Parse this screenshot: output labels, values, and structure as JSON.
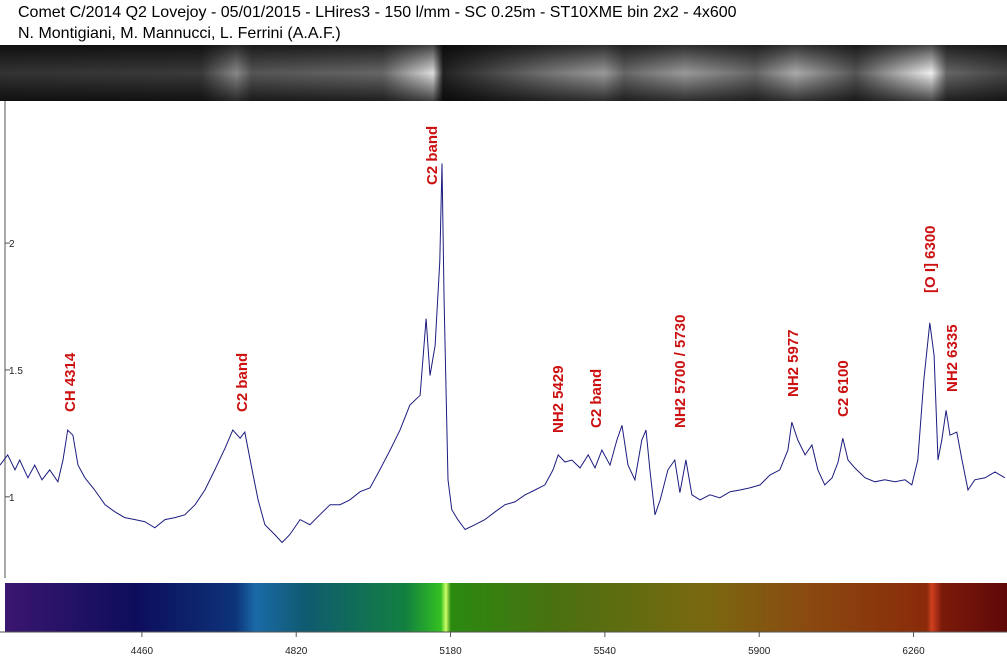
{
  "chart_data": {
    "type": "line",
    "title": "Comet C/2014 Q2 Lovejoy - 05/01/2015 - LHires3 - 150 l/mm - SC 0.25m - ST10XME bin 2x2 - 4x600",
    "subtitle": "N. Montigiani, M. Mannucci, L. Ferrini (A.A.F.)",
    "x": [
      4129,
      4147,
      4164,
      4175,
      4194,
      4210,
      4227,
      4245,
      4264,
      4276,
      4287,
      4299,
      4311,
      4327,
      4350,
      4374,
      4397,
      4420,
      4444,
      4467,
      4490,
      4514,
      4537,
      4560,
      4584,
      4607,
      4630,
      4654,
      4672,
      4689,
      4700,
      4717,
      4731,
      4747,
      4770,
      4787,
      4805,
      4829,
      4852,
      4875,
      4899,
      4922,
      4945,
      4969,
      4992,
      5015,
      5039,
      5062,
      5085,
      5109,
      5123,
      5132,
      5144,
      5155,
      5160,
      5165,
      5174,
      5183,
      5197,
      5214,
      5237,
      5260,
      5284,
      5307,
      5330,
      5354,
      5377,
      5400,
      5419,
      5431,
      5447,
      5463,
      5482,
      5501,
      5517,
      5533,
      5552,
      5568,
      5580,
      5594,
      5610,
      5626,
      5636,
      5645,
      5657,
      5669,
      5687,
      5703,
      5715,
      5729,
      5743,
      5762,
      5785,
      5808,
      5832,
      5855,
      5878,
      5902,
      5925,
      5948,
      5967,
      5976,
      5990,
      6007,
      6023,
      6037,
      6053,
      6070,
      6084,
      6095,
      6107,
      6123,
      6147,
      6170,
      6193,
      6217,
      6240,
      6256,
      6270,
      6284,
      6298,
      6308,
      6317,
      6326,
      6336,
      6345,
      6361,
      6373,
      6387,
      6403,
      6427,
      6450,
      6473
    ],
    "series": [
      {
        "color": "#1c1c80",
        "values": [
          1.125,
          1.165,
          1.106,
          1.145,
          1.075,
          1.125,
          1.067,
          1.106,
          1.059,
          1.145,
          1.263,
          1.243,
          1.125,
          1.075,
          1.027,
          0.969,
          0.941,
          0.918,
          0.91,
          0.902,
          0.878,
          0.91,
          0.918,
          0.929,
          0.969,
          1.027,
          1.106,
          1.192,
          1.263,
          1.231,
          1.255,
          1.106,
          0.988,
          0.89,
          0.851,
          0.82,
          0.851,
          0.91,
          0.89,
          0.929,
          0.969,
          0.969,
          0.988,
          1.02,
          1.035,
          1.106,
          1.184,
          1.263,
          1.361,
          1.4,
          1.702,
          1.478,
          1.596,
          1.929,
          2.314,
          1.773,
          1.067,
          0.949,
          0.91,
          0.871,
          0.89,
          0.91,
          0.941,
          0.969,
          0.98,
          1.008,
          1.027,
          1.047,
          1.106,
          1.165,
          1.137,
          1.145,
          1.114,
          1.165,
          1.114,
          1.184,
          1.125,
          1.224,
          1.282,
          1.125,
          1.067,
          1.224,
          1.263,
          1.106,
          0.929,
          0.988,
          1.106,
          1.145,
          1.016,
          1.145,
          1.008,
          0.988,
          1.008,
          0.996,
          1.02,
          1.027,
          1.035,
          1.047,
          1.086,
          1.106,
          1.184,
          1.294,
          1.224,
          1.165,
          1.204,
          1.106,
          1.047,
          1.075,
          1.137,
          1.231,
          1.145,
          1.114,
          1.075,
          1.059,
          1.067,
          1.059,
          1.067,
          1.047,
          1.145,
          1.459,
          1.686,
          1.557,
          1.145,
          1.224,
          1.341,
          1.243,
          1.255,
          1.145,
          1.027,
          1.067,
          1.075,
          1.098,
          1.075
        ]
      }
    ],
    "xlim": [
      4129,
      6478
    ],
    "ylim": [
      0.68,
      2.56
    ],
    "xticks": [
      4460,
      4820,
      5180,
      5540,
      5900,
      6260
    ],
    "yticks": [
      1,
      1.5,
      2
    ],
    "annotations": [
      "CH 4314",
      "C2 band",
      "C2 band",
      "NH2 5429",
      "C2 band",
      "NH2 5700 / 5730",
      "NH2 5977",
      "C2 6100",
      "[O I] 6300",
      "NH2 6335"
    ]
  }
}
